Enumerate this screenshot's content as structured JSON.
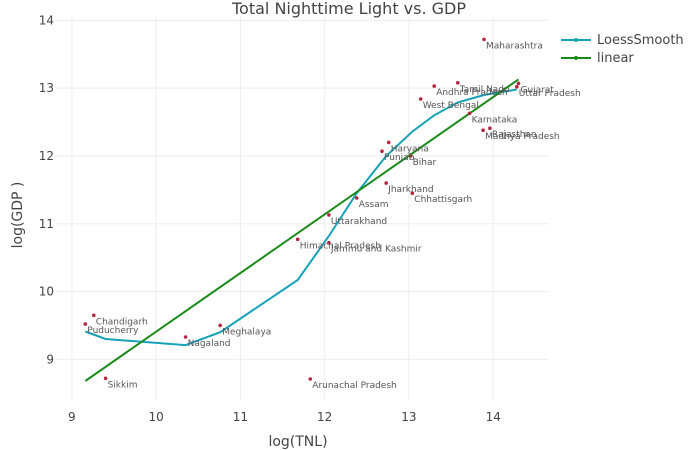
{
  "chart_data": {
    "type": "scatter",
    "title": "Total Nighttime Light vs. GDP",
    "xlabel": "log(TNL)",
    "ylabel": "log(GDP )",
    "xlim": [
      8.8,
      14.65
    ],
    "ylim": [
      8.4,
      14.05
    ],
    "xticks": [
      9,
      10,
      11,
      12,
      13,
      14
    ],
    "yticks": [
      9,
      10,
      11,
      12,
      13,
      14
    ],
    "grid": true,
    "legend_position": "top-right",
    "points": [
      {
        "label": "Maharashtra",
        "x": 13.89,
        "y": 13.72
      },
      {
        "label": "Tamil Nadu",
        "x": 13.58,
        "y": 13.08
      },
      {
        "label": "Andhra Pradesh",
        "x": 13.3,
        "y": 13.03
      },
      {
        "label": "Uttar Pradesh",
        "x": 14.28,
        "y": 13.02
      },
      {
        "label": "West Bengal",
        "x": 13.14,
        "y": 12.84
      },
      {
        "label": "Karnataka",
        "x": 13.72,
        "y": 12.63
      },
      {
        "label": "Rajasthan",
        "x": 13.96,
        "y": 12.41
      },
      {
        "label": "Madhya Pradesh",
        "x": 13.88,
        "y": 12.38
      },
      {
        "label": "Gujarat",
        "x": 14.3,
        "y": 13.07
      },
      {
        "label": "Haryana",
        "x": 12.76,
        "y": 12.2
      },
      {
        "label": "Punjab",
        "x": 12.68,
        "y": 12.07
      },
      {
        "label": "Bihar",
        "x": 13.02,
        "y": 12.0
      },
      {
        "label": "Jharkhand",
        "x": 12.73,
        "y": 11.6
      },
      {
        "label": "Chhattisgarh",
        "x": 13.04,
        "y": 11.45
      },
      {
        "label": "Assam",
        "x": 12.38,
        "y": 11.38
      },
      {
        "label": "Uttarakhand",
        "x": 12.05,
        "y": 11.13
      },
      {
        "label": "Himachal Pradesh",
        "x": 11.68,
        "y": 10.77
      },
      {
        "label": "Jammu and Kashmir",
        "x": 12.05,
        "y": 10.72
      },
      {
        "label": "Chandigarh",
        "x": 9.26,
        "y": 9.65
      },
      {
        "label": "Puducherry",
        "x": 9.16,
        "y": 9.52
      },
      {
        "label": "Meghalaya",
        "x": 10.76,
        "y": 9.5
      },
      {
        "label": "Nagaland",
        "x": 10.35,
        "y": 9.33
      },
      {
        "label": "Sikkim",
        "x": 9.4,
        "y": 8.72
      },
      {
        "label": "Arunachal Pradesh",
        "x": 11.83,
        "y": 8.71
      }
    ],
    "series": [
      {
        "name": "LoessSmooth",
        "type": "line",
        "color": "#17a2b8",
        "x": [
          9.16,
          9.4,
          10.35,
          10.76,
          11.68,
          12.05,
          12.38,
          12.73,
          13.04,
          13.3,
          13.58,
          13.89,
          14.28
        ],
        "y": [
          9.41,
          9.3,
          9.21,
          9.4,
          10.17,
          10.82,
          11.45,
          12.0,
          12.36,
          12.6,
          12.79,
          12.9,
          12.98
        ]
      },
      {
        "name": "linear",
        "type": "line",
        "color": "#1a8a1a",
        "x": [
          9.16,
          14.3
        ],
        "y": [
          8.68,
          13.13
        ]
      }
    ],
    "point_color": "#b5253f"
  }
}
